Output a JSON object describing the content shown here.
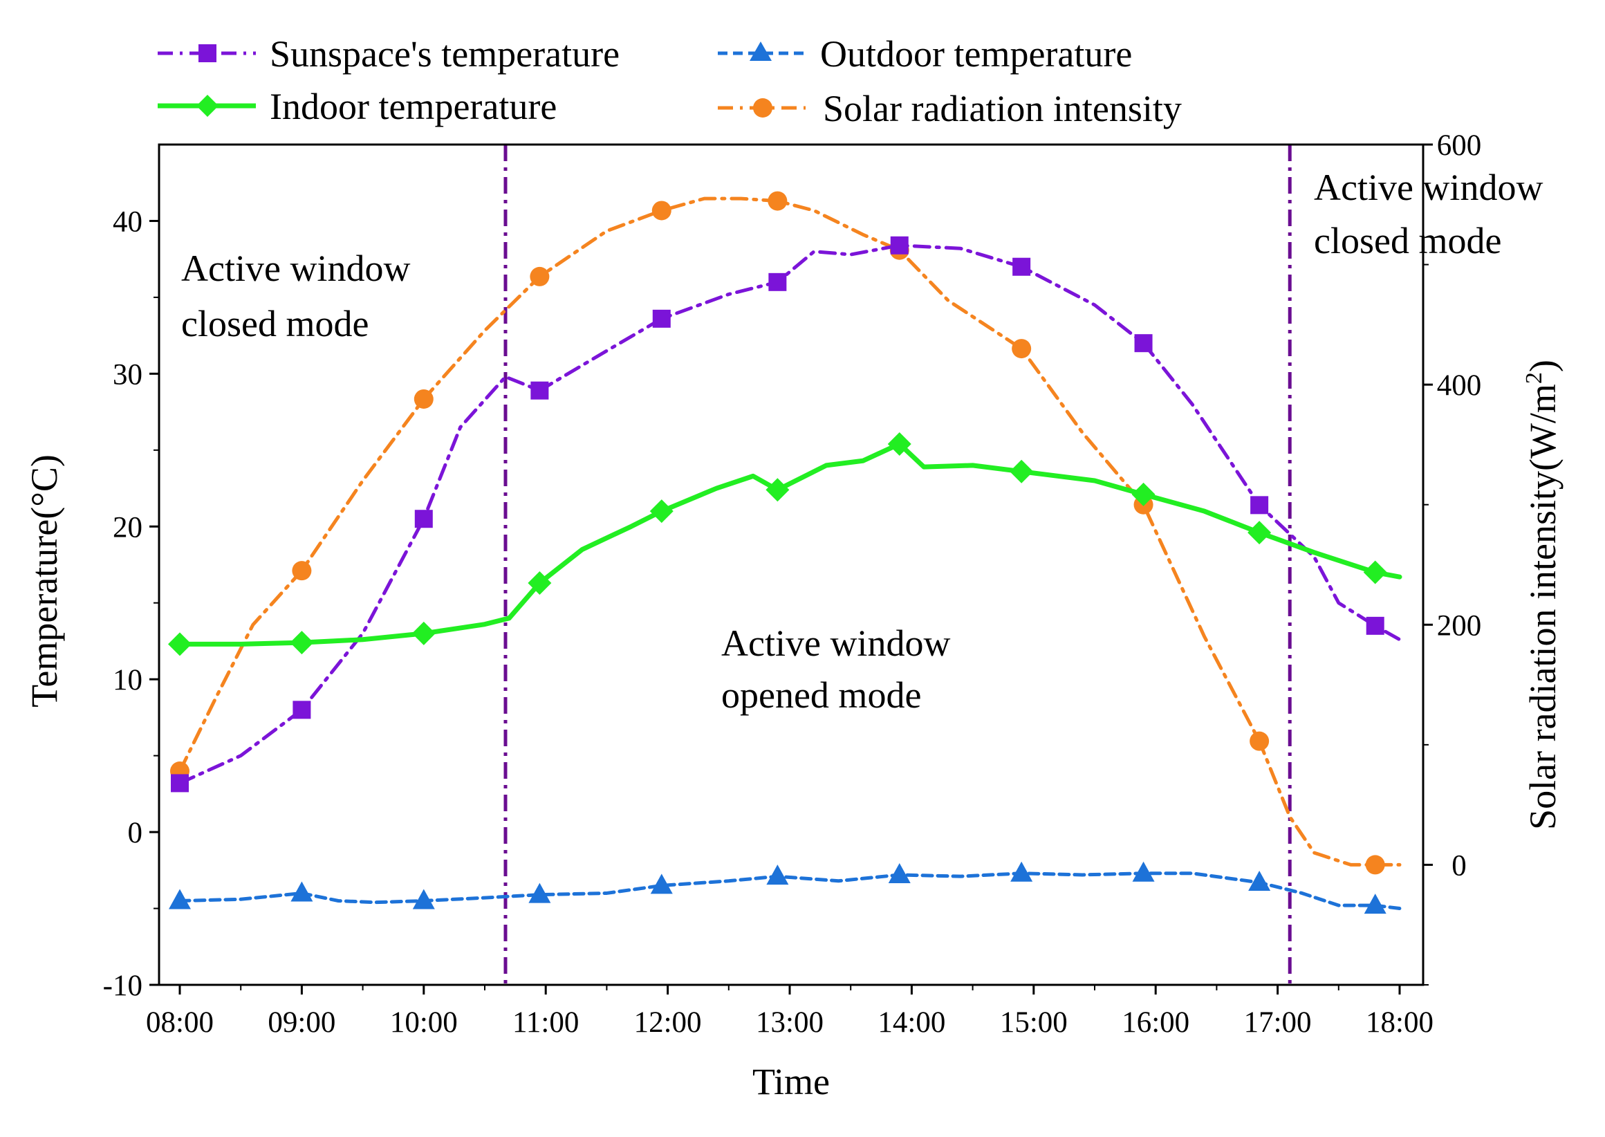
{
  "chart_data": {
    "type": "line",
    "xlabel": "Time",
    "ylabel": "Temperature(°C)",
    "y2label_main": "Solar radiation intensity(W/m",
    "y2label_sup": "2",
    "y2label_tail": ")",
    "ylim": [
      -10,
      45
    ],
    "y2lim": [
      -100,
      600
    ],
    "x_categories": [
      "08:00",
      "09:00",
      "10:00",
      "11:00",
      "12:00",
      "13:00",
      "14:00",
      "15:00",
      "16:00",
      "17:00",
      "18:00"
    ],
    "y_ticks": [
      -10,
      0,
      10,
      20,
      30,
      40
    ],
    "y2_ticks": [
      0,
      200,
      400,
      600
    ],
    "legend": {
      "placement": "top",
      "entries": [
        "Sunspace's temperature",
        "Indoor temperature",
        "Outdoor temperature",
        "Solar radiation intensity"
      ]
    },
    "mode_lines": {
      "at_hours": [
        10.67,
        17.1
      ],
      "color": "#6a0d91"
    },
    "annotations": {
      "closed_left_1": "Active window",
      "closed_left_2": "closed mode",
      "opened_1": "Active window",
      "opened_2": "opened mode",
      "closed_right_1": "Active window",
      "closed_right_2": "closed mode"
    },
    "series": [
      {
        "name": "Sunspace's temperature",
        "axis": "left",
        "color": "#7b14d8",
        "marker": "square",
        "dash": "dashdot",
        "x": [
          8.0,
          8.5,
          9.0,
          9.5,
          10.0,
          10.3,
          10.67,
          10.95,
          11.5,
          11.95,
          12.5,
          12.9,
          13.2,
          13.5,
          13.9,
          14.4,
          14.9,
          15.5,
          15.9,
          16.3,
          16.85,
          17.3,
          17.5,
          17.8,
          18.0
        ],
        "y": [
          3.2,
          5.0,
          8.0,
          13.0,
          20.5,
          26.5,
          29.8,
          28.9,
          31.5,
          33.6,
          35.2,
          36.0,
          38.0,
          37.8,
          38.4,
          38.2,
          37.0,
          34.5,
          32.0,
          28.0,
          21.4,
          18.0,
          15.0,
          13.5,
          12.6
        ],
        "marker_x": [
          8.0,
          9.0,
          10.0,
          10.95,
          11.95,
          12.9,
          13.9,
          14.9,
          15.9,
          16.85,
          17.8
        ],
        "marker_y": [
          3.2,
          8.0,
          20.5,
          28.9,
          33.6,
          36.0,
          38.4,
          37.0,
          32.0,
          21.4,
          13.5
        ]
      },
      {
        "name": "Indoor temperature",
        "axis": "left",
        "color": "#22ee22",
        "marker": "diamond",
        "dash": "solid",
        "x": [
          8.0,
          8.5,
          9.0,
          9.5,
          10.0,
          10.5,
          10.7,
          10.95,
          11.3,
          11.7,
          11.95,
          12.4,
          12.7,
          12.9,
          13.3,
          13.6,
          13.9,
          14.1,
          14.5,
          14.9,
          15.5,
          15.9,
          16.4,
          16.85,
          17.3,
          17.8,
          18.0
        ],
        "y": [
          12.3,
          12.3,
          12.4,
          12.6,
          13.0,
          13.6,
          14.0,
          16.3,
          18.5,
          20.0,
          21.0,
          22.5,
          23.3,
          22.4,
          24.0,
          24.3,
          25.4,
          23.9,
          24.0,
          23.6,
          23.0,
          22.1,
          21.0,
          19.6,
          18.3,
          17.0,
          16.7
        ],
        "marker_x": [
          8.0,
          9.0,
          10.0,
          10.95,
          11.95,
          12.9,
          13.9,
          14.9,
          15.9,
          16.85,
          17.8
        ],
        "marker_y": [
          12.3,
          12.4,
          13.0,
          16.3,
          21.0,
          22.4,
          25.4,
          23.6,
          22.1,
          19.6,
          17.0
        ]
      },
      {
        "name": "Outdoor temperature",
        "axis": "left",
        "color": "#1d72d8",
        "marker": "triangle",
        "dash": "dash",
        "x": [
          8.0,
          8.5,
          9.0,
          9.3,
          9.6,
          10.0,
          10.5,
          10.95,
          11.5,
          11.95,
          12.5,
          12.9,
          13.4,
          13.9,
          14.4,
          14.9,
          15.4,
          15.9,
          16.3,
          16.85,
          17.2,
          17.5,
          17.8,
          18.0
        ],
        "y": [
          -4.5,
          -4.4,
          -4.0,
          -4.5,
          -4.6,
          -4.5,
          -4.3,
          -4.1,
          -4.0,
          -3.5,
          -3.2,
          -2.9,
          -3.2,
          -2.8,
          -2.9,
          -2.7,
          -2.8,
          -2.7,
          -2.7,
          -3.3,
          -4.0,
          -4.8,
          -4.8,
          -5.0
        ],
        "marker_x": [
          8.0,
          9.0,
          10.0,
          10.95,
          11.95,
          12.9,
          13.9,
          14.9,
          15.9,
          16.85,
          17.8
        ],
        "marker_y": [
          -4.5,
          -4.0,
          -4.5,
          -4.1,
          -3.5,
          -2.9,
          -2.8,
          -2.7,
          -2.7,
          -3.3,
          -4.8
        ]
      },
      {
        "name": "Solar radiation intensity",
        "axis": "right",
        "color": "#f5841f",
        "marker": "circle",
        "dash": "dashdot",
        "x": [
          8.0,
          8.3,
          8.6,
          9.0,
          9.5,
          10.0,
          10.5,
          10.95,
          11.5,
          11.95,
          12.3,
          12.6,
          12.9,
          13.2,
          13.6,
          13.9,
          14.3,
          14.9,
          15.4,
          15.9,
          16.4,
          16.85,
          17.1,
          17.3,
          17.6,
          17.8,
          18.0
        ],
        "y": [
          78,
          140,
          200,
          245,
          320,
          388,
          445,
          490,
          528,
          545,
          555,
          555,
          553,
          545,
          525,
          512,
          470,
          430,
          360,
          300,
          190,
          103,
          40,
          10,
          0,
          0,
          0
        ],
        "marker_x": [
          8.0,
          9.0,
          10.0,
          10.95,
          11.95,
          12.9,
          13.9,
          14.9,
          15.9,
          16.85,
          17.8
        ],
        "marker_y": [
          78,
          245,
          388,
          490,
          545,
          553,
          512,
          430,
          300,
          103,
          0
        ]
      }
    ]
  }
}
